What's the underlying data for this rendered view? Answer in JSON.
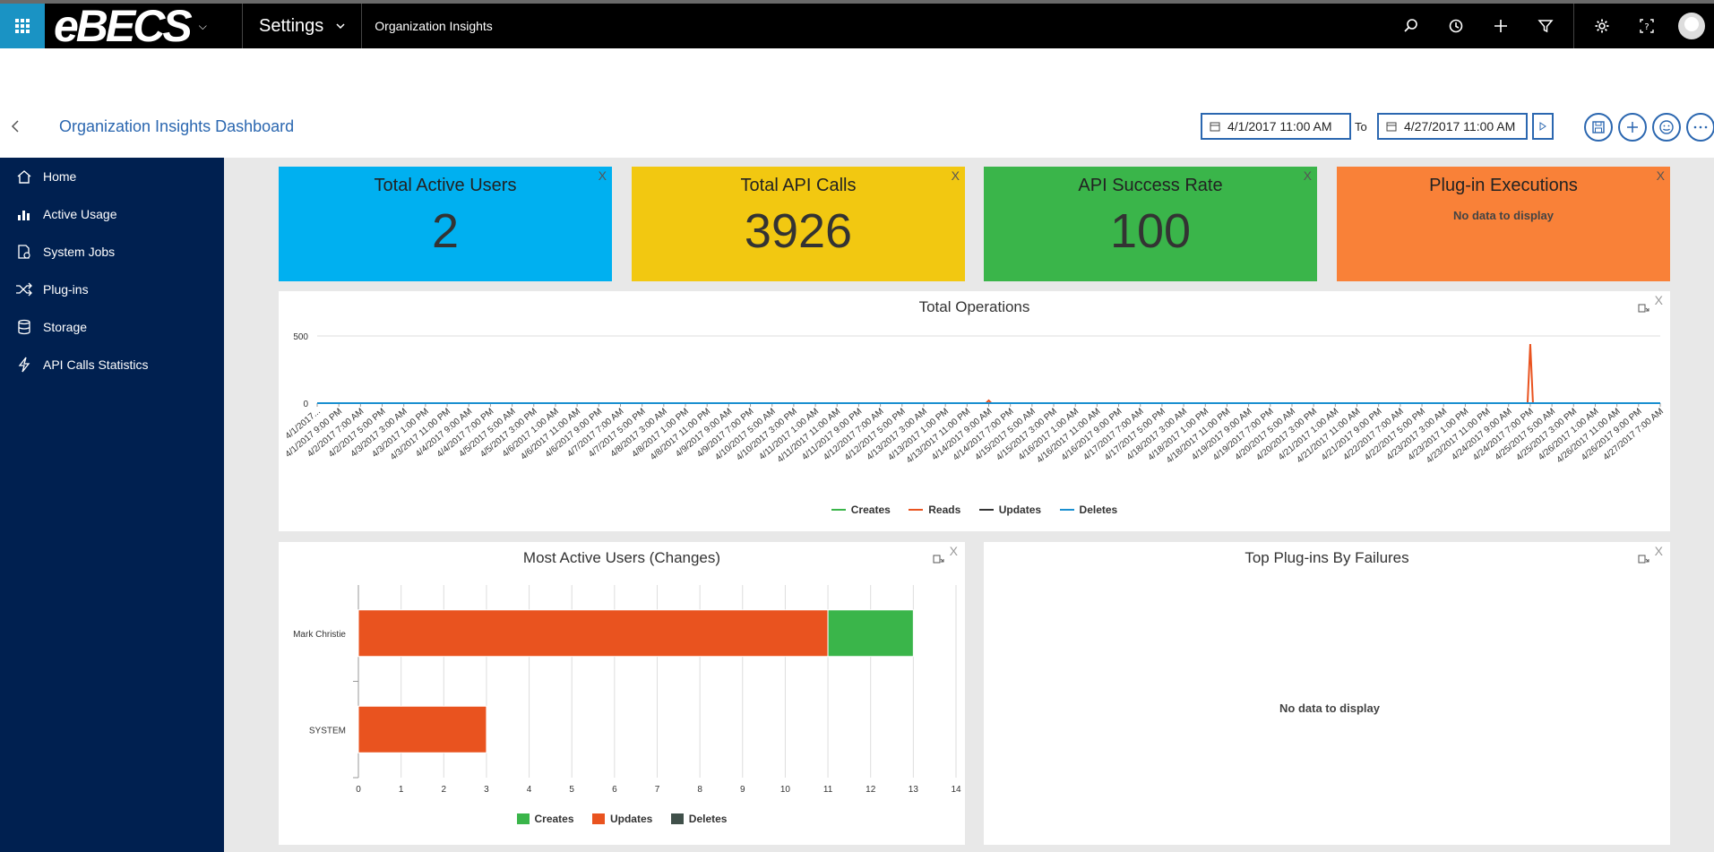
{
  "topbar": {
    "logo": "eBECS",
    "settings_label": "Settings",
    "module_label": "Organization Insights"
  },
  "header": {
    "title": "Organization Insights Dashboard",
    "date_from": "4/1/2017 11:00 AM",
    "to_label": "To",
    "date_to": "4/27/2017 11:00 AM"
  },
  "sidebar": {
    "items": [
      {
        "label": "Home",
        "icon": "home-icon"
      },
      {
        "label": "Active Usage",
        "icon": "bar-chart-icon"
      },
      {
        "label": "System Jobs",
        "icon": "jobs-icon"
      },
      {
        "label": "Plug-ins",
        "icon": "shuffle-icon"
      },
      {
        "label": "Storage",
        "icon": "database-icon"
      },
      {
        "label": "API Calls Statistics",
        "icon": "lightning-icon"
      }
    ]
  },
  "tiles": [
    {
      "title": "Total Active Users",
      "value": "2",
      "color": "#00b0f0"
    },
    {
      "title": "Total API Calls",
      "value": "3926",
      "color": "#f2c811"
    },
    {
      "title": "API Success Rate",
      "value": "100",
      "color": "#3ab54a"
    },
    {
      "title": "Plug-in Executions",
      "value": "No data to display",
      "color": "#f98138"
    }
  ],
  "close_label": "X",
  "total_ops": {
    "title": "Total Operations",
    "legend": [
      {
        "name": "Creates",
        "color": "#3ab54a"
      },
      {
        "name": "Reads",
        "color": "#e9531f"
      },
      {
        "name": "Updates",
        "color": "#333333"
      },
      {
        "name": "Deletes",
        "color": "#1a8fd0"
      }
    ]
  },
  "active_users": {
    "title": "Most Active Users (Changes)",
    "legend": [
      {
        "name": "Creates",
        "color": "#3ab54a"
      },
      {
        "name": "Updates",
        "color": "#e9531f"
      },
      {
        "name": "Deletes",
        "color": "#40504a"
      }
    ]
  },
  "top_plugins": {
    "title": "Top Plug-ins By Failures",
    "no_data": "No data to display"
  },
  "chart_data": [
    {
      "type": "line",
      "title": "Total Operations",
      "y_ticks": [
        0,
        500
      ],
      "ylim": [
        0,
        500
      ],
      "x": [
        "4/1/2017...",
        "4/1/2017 9:00 PM",
        "4/2/2017 7:00 AM",
        "4/2/2017 5:00 PM",
        "4/3/2017 3:00 AM",
        "4/3/2017 1:00 PM",
        "4/3/2017 11:00 PM",
        "4/4/2017 9:00 AM",
        "4/4/2017 7:00 PM",
        "4/5/2017 5:00 AM",
        "4/5/2017 3:00 PM",
        "4/6/2017 1:00 AM",
        "4/6/2017 11:00 AM",
        "4/6/2017 9:00 PM",
        "4/7/2017 7:00 AM",
        "4/7/2017 5:00 PM",
        "4/8/2017 3:00 AM",
        "4/8/2017 1:00 PM",
        "4/8/2017 11:00 PM",
        "4/9/2017 9:00 AM",
        "4/9/2017 7:00 PM",
        "4/10/2017 5:00 AM",
        "4/10/2017 3:00 PM",
        "4/11/2017 1:00 AM",
        "4/11/2017 11:00 AM",
        "4/11/2017 9:00 PM",
        "4/12/2017 7:00 AM",
        "4/12/2017 5:00 PM",
        "4/13/2017 3:00 AM",
        "4/13/2017 1:00 PM",
        "4/13/2017 11:00 PM",
        "4/14/2017 9:00 AM",
        "4/14/2017 7:00 PM",
        "4/15/2017 5:00 AM",
        "4/15/2017 3:00 PM",
        "4/16/2017 1:00 AM",
        "4/16/2017 11:00 AM",
        "4/16/2017 9:00 PM",
        "4/17/2017 7:00 AM",
        "4/17/2017 5:00 PM",
        "4/18/2017 3:00 AM",
        "4/18/2017 1:00 PM",
        "4/18/2017 11:00 PM",
        "4/19/2017 9:00 AM",
        "4/19/2017 7:00 PM",
        "4/20/2017 5:00 AM",
        "4/20/2017 3:00 PM",
        "4/21/2017 1:00 AM",
        "4/21/2017 11:00 AM",
        "4/21/2017 9:00 PM",
        "4/22/2017 7:00 AM",
        "4/22/2017 5:00 PM",
        "4/23/2017 3:00 AM",
        "4/23/2017 1:00 PM",
        "4/23/2017 11:00 PM",
        "4/24/2017 9:00 AM",
        "4/24/2017 7:00 PM",
        "4/25/2017 5:00 AM",
        "4/25/2017 3:00 PM",
        "4/26/2017 1:00 AM",
        "4/26/2017 11:00 AM",
        "4/26/2017 9:00 PM",
        "4/27/2017 7:00 AM"
      ],
      "series": [
        {
          "name": "Reads",
          "color": "#e9531f",
          "spikes": [
            {
              "at": "4/14/2017 9:00 AM",
              "value": 20
            },
            {
              "at": "4/24/2017 7:00 PM",
              "value": 440
            }
          ]
        },
        {
          "name": "Deletes",
          "color": "#1a8fd0",
          "spikes": []
        }
      ]
    },
    {
      "type": "bar",
      "orientation": "horizontal",
      "stacked": true,
      "title": "Most Active Users (Changes)",
      "categories": [
        "Mark Christie",
        "SYSTEM"
      ],
      "xlim": [
        0,
        14
      ],
      "x_ticks": [
        0,
        1,
        2,
        3,
        4,
        5,
        6,
        7,
        8,
        9,
        10,
        11,
        12,
        13,
        14
      ],
      "series": [
        {
          "name": "Updates",
          "color": "#e9531f",
          "values": [
            11,
            3
          ]
        },
        {
          "name": "Creates",
          "color": "#3ab54a",
          "values": [
            2,
            0
          ]
        },
        {
          "name": "Deletes",
          "color": "#40504a",
          "values": [
            0,
            0
          ]
        }
      ]
    }
  ]
}
